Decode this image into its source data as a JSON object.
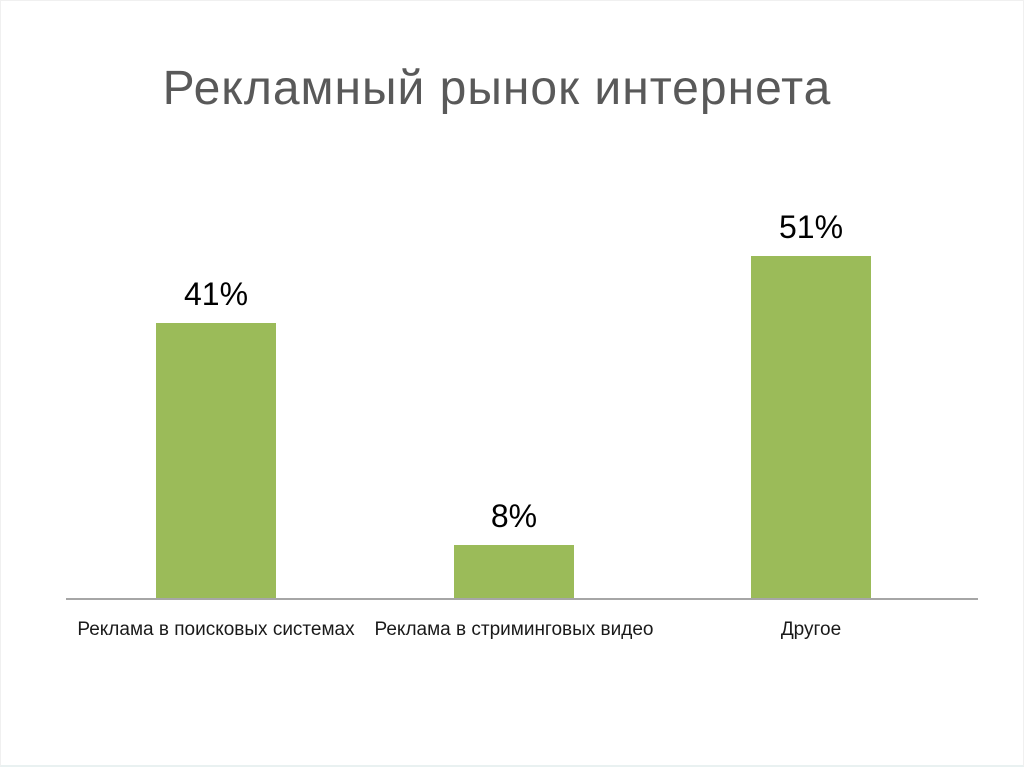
{
  "title": "Рекламный рынок интернета",
  "chart_data": {
    "type": "bar",
    "title": "Рекламный рынок интернета",
    "categories": [
      "Реклама в поисковых системах",
      "Реклама в стриминговых видео",
      "Другое"
    ],
    "values": [
      41,
      8,
      51
    ],
    "value_labels": [
      "41%",
      "8%",
      "51%"
    ],
    "unit": "%",
    "xlabel": "",
    "ylabel": "",
    "ylim": [
      0,
      55
    ],
    "grid": false,
    "legend": false,
    "data_labels_position": "above-bar",
    "baseline_axis": "x"
  },
  "colors": {
    "bar": "#9BBB59",
    "title_text": "#595959",
    "axis_line": "#A6A6A6",
    "label_text": "#1A1A1A",
    "value_text": "#000000",
    "background": "#FFFFFF"
  }
}
